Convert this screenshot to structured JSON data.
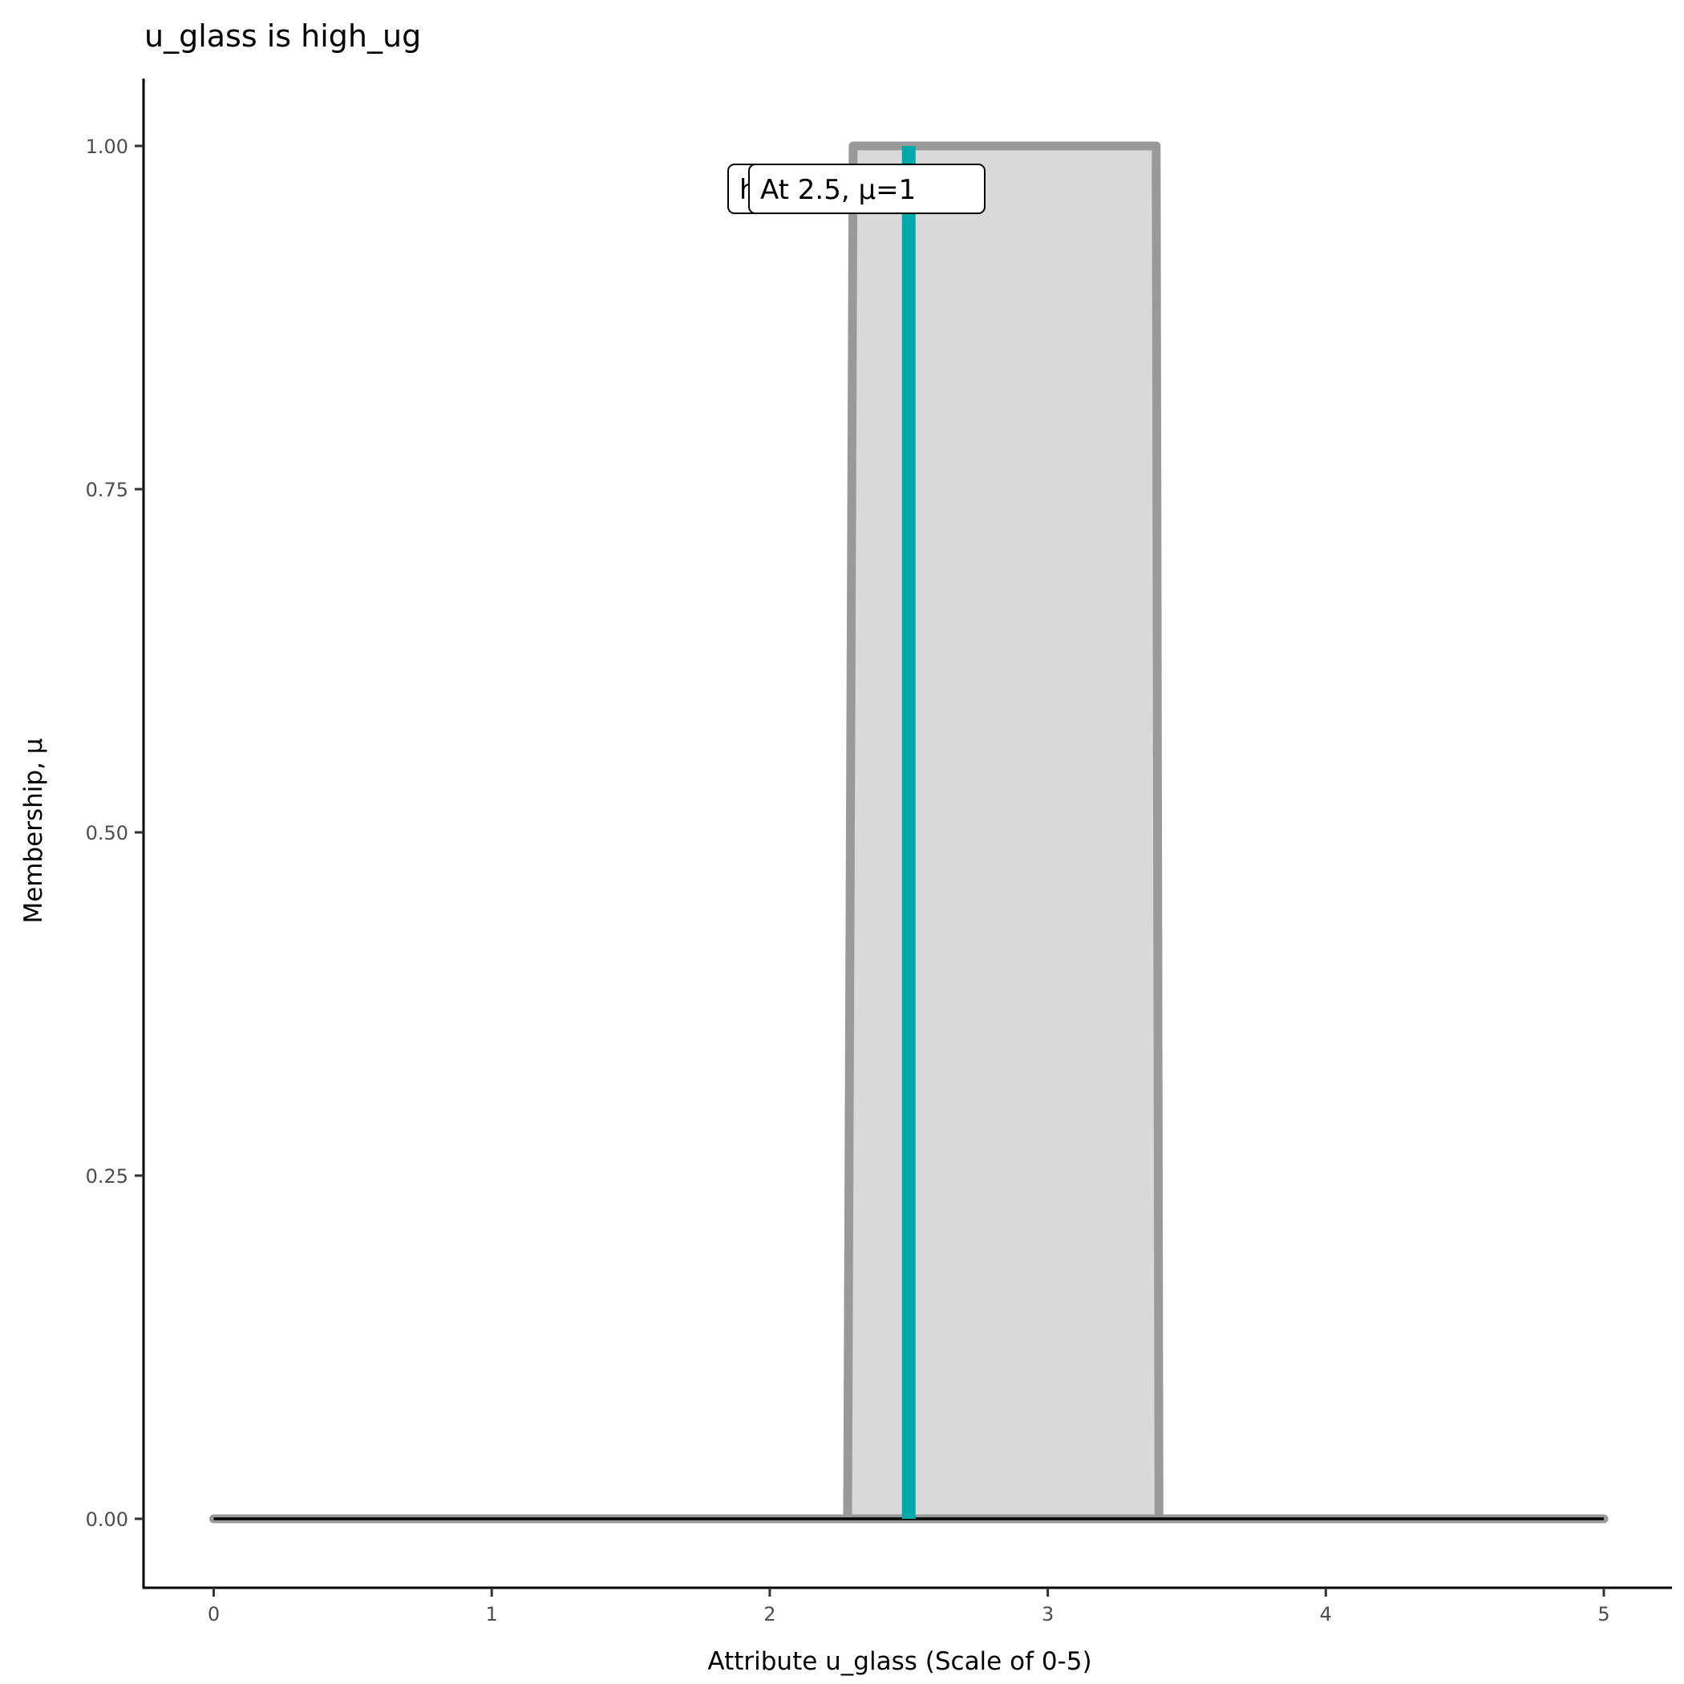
{
  "chart_data": {
    "type": "area",
    "title": "u_glass is high_ug",
    "xlabel": "Attribute u_glass (Scale of 0-5)",
    "ylabel": "Membership, μ",
    "xlim": [
      -0.25,
      5.25
    ],
    "ylim": [
      -0.05,
      1.05
    ],
    "x_ticks": [
      "0",
      "1",
      "2",
      "3",
      "4",
      "5"
    ],
    "y_ticks": [
      "0.00",
      "0.25",
      "0.50",
      "0.75",
      "1.00"
    ],
    "grid": false,
    "membership_function": {
      "x": [
        0,
        2.28,
        2.3,
        3.39,
        3.4,
        5
      ],
      "y": [
        0,
        0,
        1,
        1,
        0,
        0
      ],
      "fill_color": "#d9d9d9",
      "stroke_color": "#999999"
    },
    "baseline": {
      "x": [
        0,
        5
      ],
      "y": [
        0,
        0
      ],
      "color": "#000000"
    },
    "marker": {
      "x": 2.5,
      "mu": 1,
      "color": "#00aaaa"
    },
    "labels": [
      {
        "text": "h"
      },
      {
        "text": "At 2.5, μ=1"
      }
    ]
  }
}
